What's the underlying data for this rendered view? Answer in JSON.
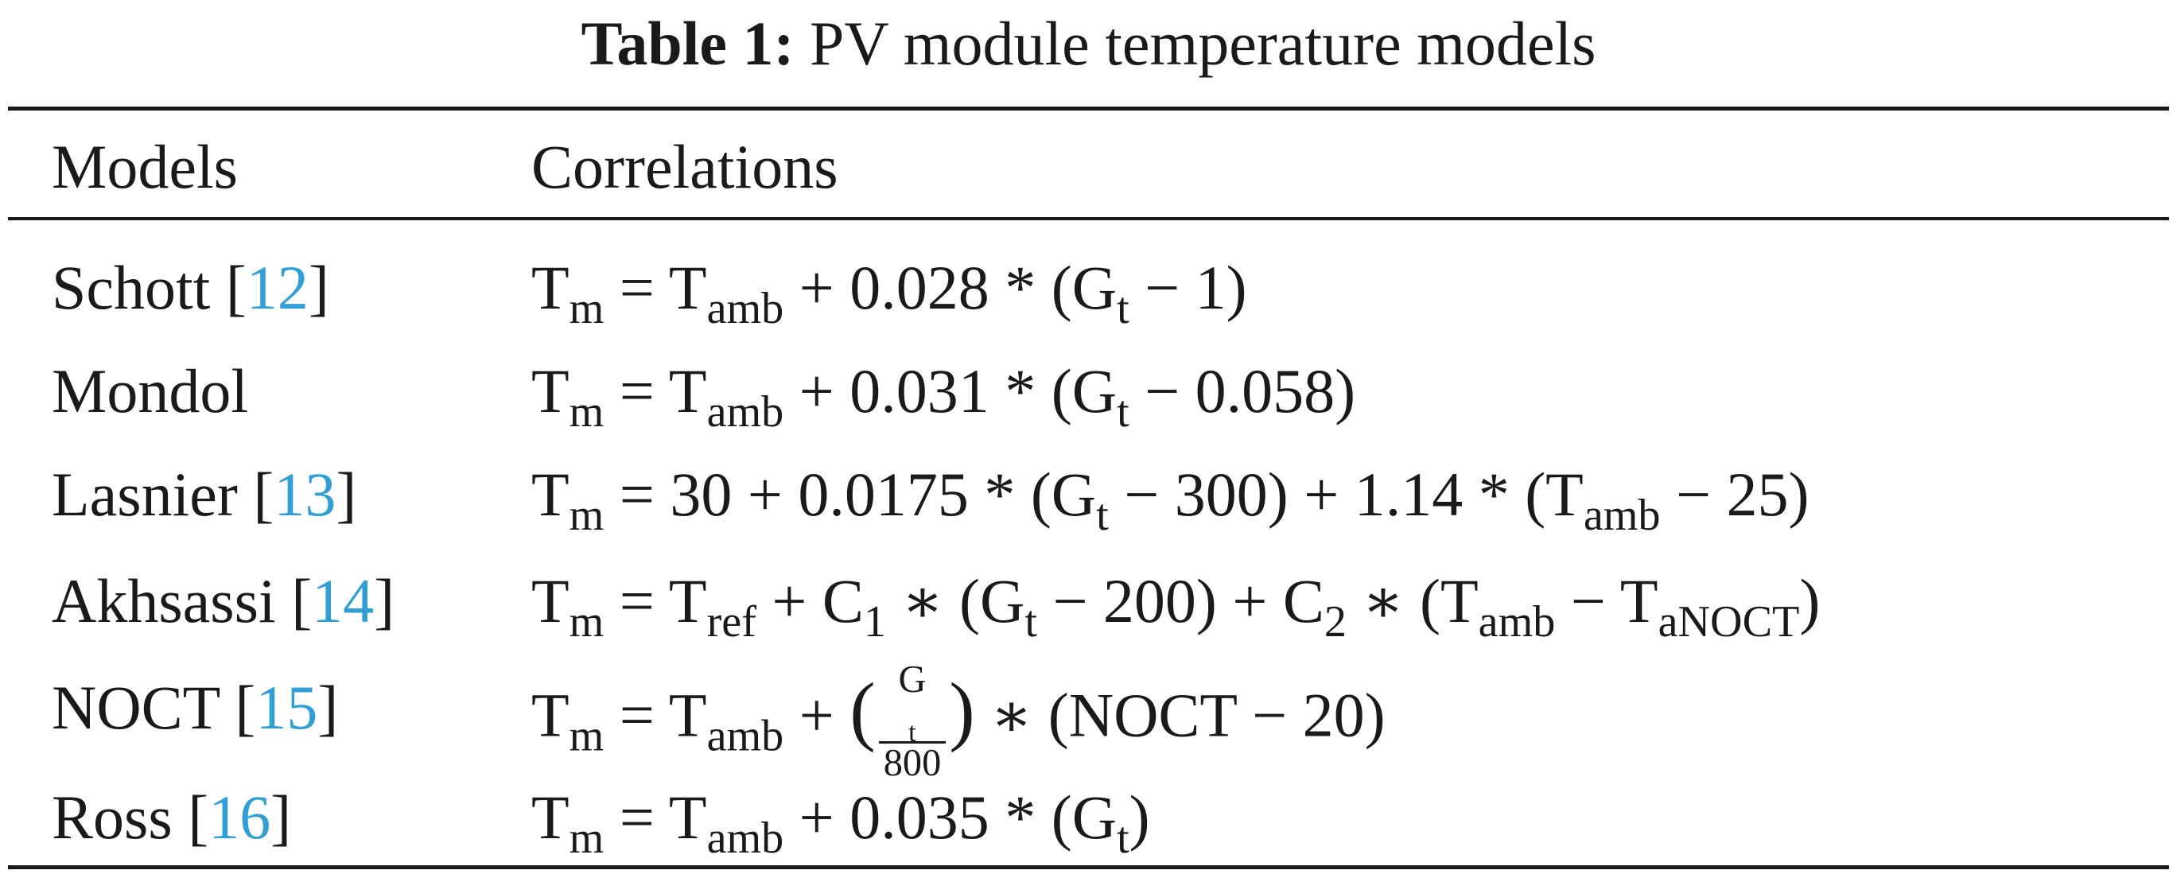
{
  "caption": {
    "label": "Table 1:",
    "title": "PV module temperature models"
  },
  "table": {
    "headers": {
      "models": "Models",
      "correlations": "Correlations"
    },
    "rows": [
      {
        "model": "Schott",
        "ref": "12",
        "eq": {
          "t1": "T",
          "t1sub": "m",
          "p1": " = T",
          "p1sub": "amb",
          "p2": " + 0.028 * (G",
          "p2sub": "t",
          "p3": " − 1)"
        }
      },
      {
        "model": "Mondol",
        "ref": "",
        "eq": {
          "t1": "T",
          "t1sub": "m",
          "p1": " = T",
          "p1sub": "amb",
          "p2": " + 0.031 * (G",
          "p2sub": "t",
          "p3": " − 0.058)"
        }
      },
      {
        "model": "Lasnier",
        "ref": "13",
        "eq": {
          "t1": "T",
          "t1sub": "m",
          "p1": " = 30 + 0.0175 * (G",
          "p1sub": "t",
          "p2": " − 300) + 1.14 * (T",
          "p2sub": "amb",
          "p3": " − 25)"
        }
      },
      {
        "model": "Akhsassi",
        "ref": "14",
        "eq": {
          "t1": "T",
          "t1sub": "m",
          "p1": " = T",
          "p1sub": "ref",
          "p2": " + C",
          "p2sub": "1",
          "p3": " ∗ (G",
          "p3sub": "t",
          "p4": " − 200) + C",
          "p4sub": "2",
          "p5": " ∗ (T",
          "p5sub": "amb",
          "p6": " − T",
          "p6sub": "aNOCT",
          "p7": ")"
        }
      },
      {
        "model": "NOCT",
        "ref": "15",
        "eq": {
          "t1": "T",
          "t1sub": "m",
          "p1": " = T",
          "p1sub": "amb",
          "p2": " + ",
          "frac_num": "G",
          "frac_num_sub": "t",
          "frac_den": "800",
          "p3": " ∗ (NOCT − 20)"
        }
      },
      {
        "model": "Ross",
        "ref": "16",
        "eq": {
          "t1": "T",
          "t1sub": "m",
          "p1": " = T",
          "p1sub": "amb",
          "p2": " + 0.035 * (G",
          "p2sub": "t",
          "p3": ")"
        }
      }
    ]
  }
}
